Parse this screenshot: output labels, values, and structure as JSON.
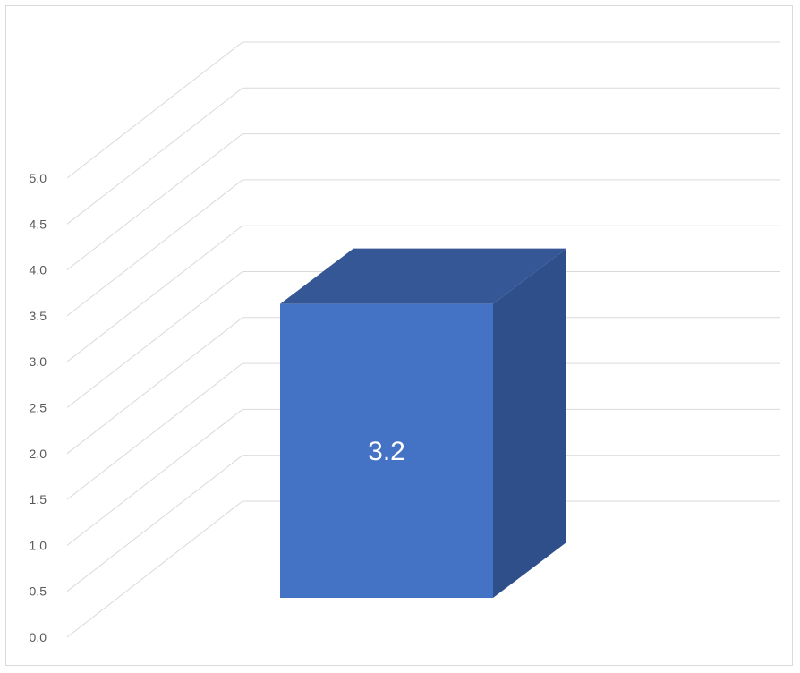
{
  "chart_data": {
    "type": "bar",
    "style": "3d-column",
    "categories": [
      ""
    ],
    "series": [
      {
        "values": [
          3.2
        ]
      }
    ],
    "data_labels": [
      "3.2"
    ],
    "y_tick_labels": [
      "0.0",
      "0.5",
      "1.0",
      "1.5",
      "2.0",
      "2.5",
      "3.0",
      "3.5",
      "4.0",
      "4.5",
      "5.0"
    ],
    "ylim": [
      0,
      5
    ],
    "y_step": 0.5,
    "grid": true,
    "legend": "none",
    "colors": {
      "bar_front": "#4472c4",
      "bar_side": "#2f4f8a",
      "bar_top": "#365796",
      "gridline": "#d9d9d9",
      "tick_text": "#595959",
      "label_text": "#ffffff"
    }
  }
}
